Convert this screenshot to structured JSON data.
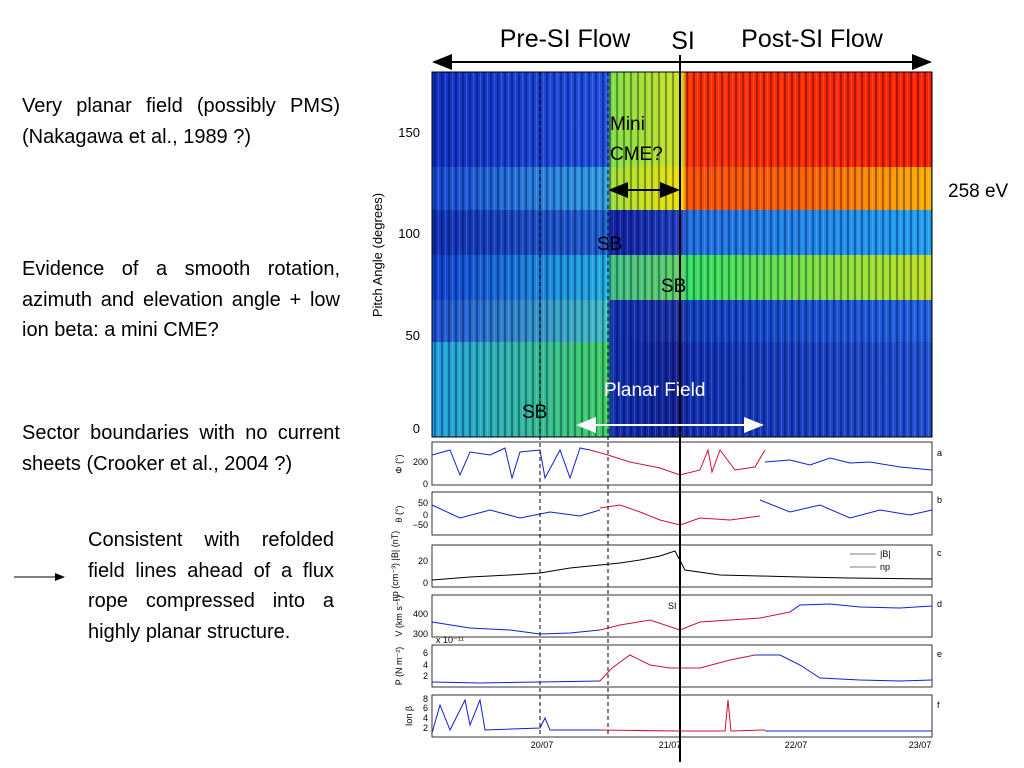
{
  "header": {
    "pre_si": "Pre-SI Flow",
    "si": "SI",
    "post_si": "Post-SI Flow"
  },
  "notes": [
    "Very planar field (possibly PMS) (Nakagawa et al., 1989 ?)",
    "Evidence of a smooth rotation, azimuth and elevation angle + low ion beta: a mini CME?",
    "Sector boundaries with no current sheets (Crooker et al., 2004 ?)",
    "Consistent with refolded field lines ahead of a flux rope compressed into a highly planar structure."
  ],
  "annotations": {
    "mini_cme_1": "Mini",
    "mini_cme_2": "CME?",
    "energy": "258 eV",
    "sb": [
      "SB",
      "SB",
      "SB"
    ],
    "planar": "Planar Field"
  },
  "spectrogram": {
    "ylabel": "Pitch Angle (degrees)",
    "yticks": [
      "150",
      "100",
      "50",
      "0"
    ]
  },
  "panels": [
    {
      "letter": "a",
      "ylabel": "Φ (°)",
      "ticks": [
        "200",
        "0"
      ]
    },
    {
      "letter": "b",
      "ylabel": "θ (°)",
      "ticks": [
        "50",
        "0",
        "−50"
      ]
    },
    {
      "letter": "c",
      "ylabel": "np (cm⁻³) |B| (nT)",
      "ticks": [
        "20",
        "0"
      ],
      "legend": [
        "|B|",
        "np"
      ]
    },
    {
      "letter": "d",
      "ylabel": "V (km s⁻¹)",
      "ticks": [
        "400",
        "300"
      ],
      "note": "SI"
    },
    {
      "letter": "e",
      "ylabel": "P (N m⁻²)",
      "ticks": [
        "6",
        "4",
        "2"
      ],
      "scale": "x 10⁻¹¹"
    },
    {
      "letter": "f",
      "ylabel": "Ion β",
      "ticks": [
        "8",
        "6",
        "4",
        "2"
      ]
    }
  ],
  "dates": [
    "20/07",
    "21/07",
    "22/07",
    "23/07"
  ]
}
